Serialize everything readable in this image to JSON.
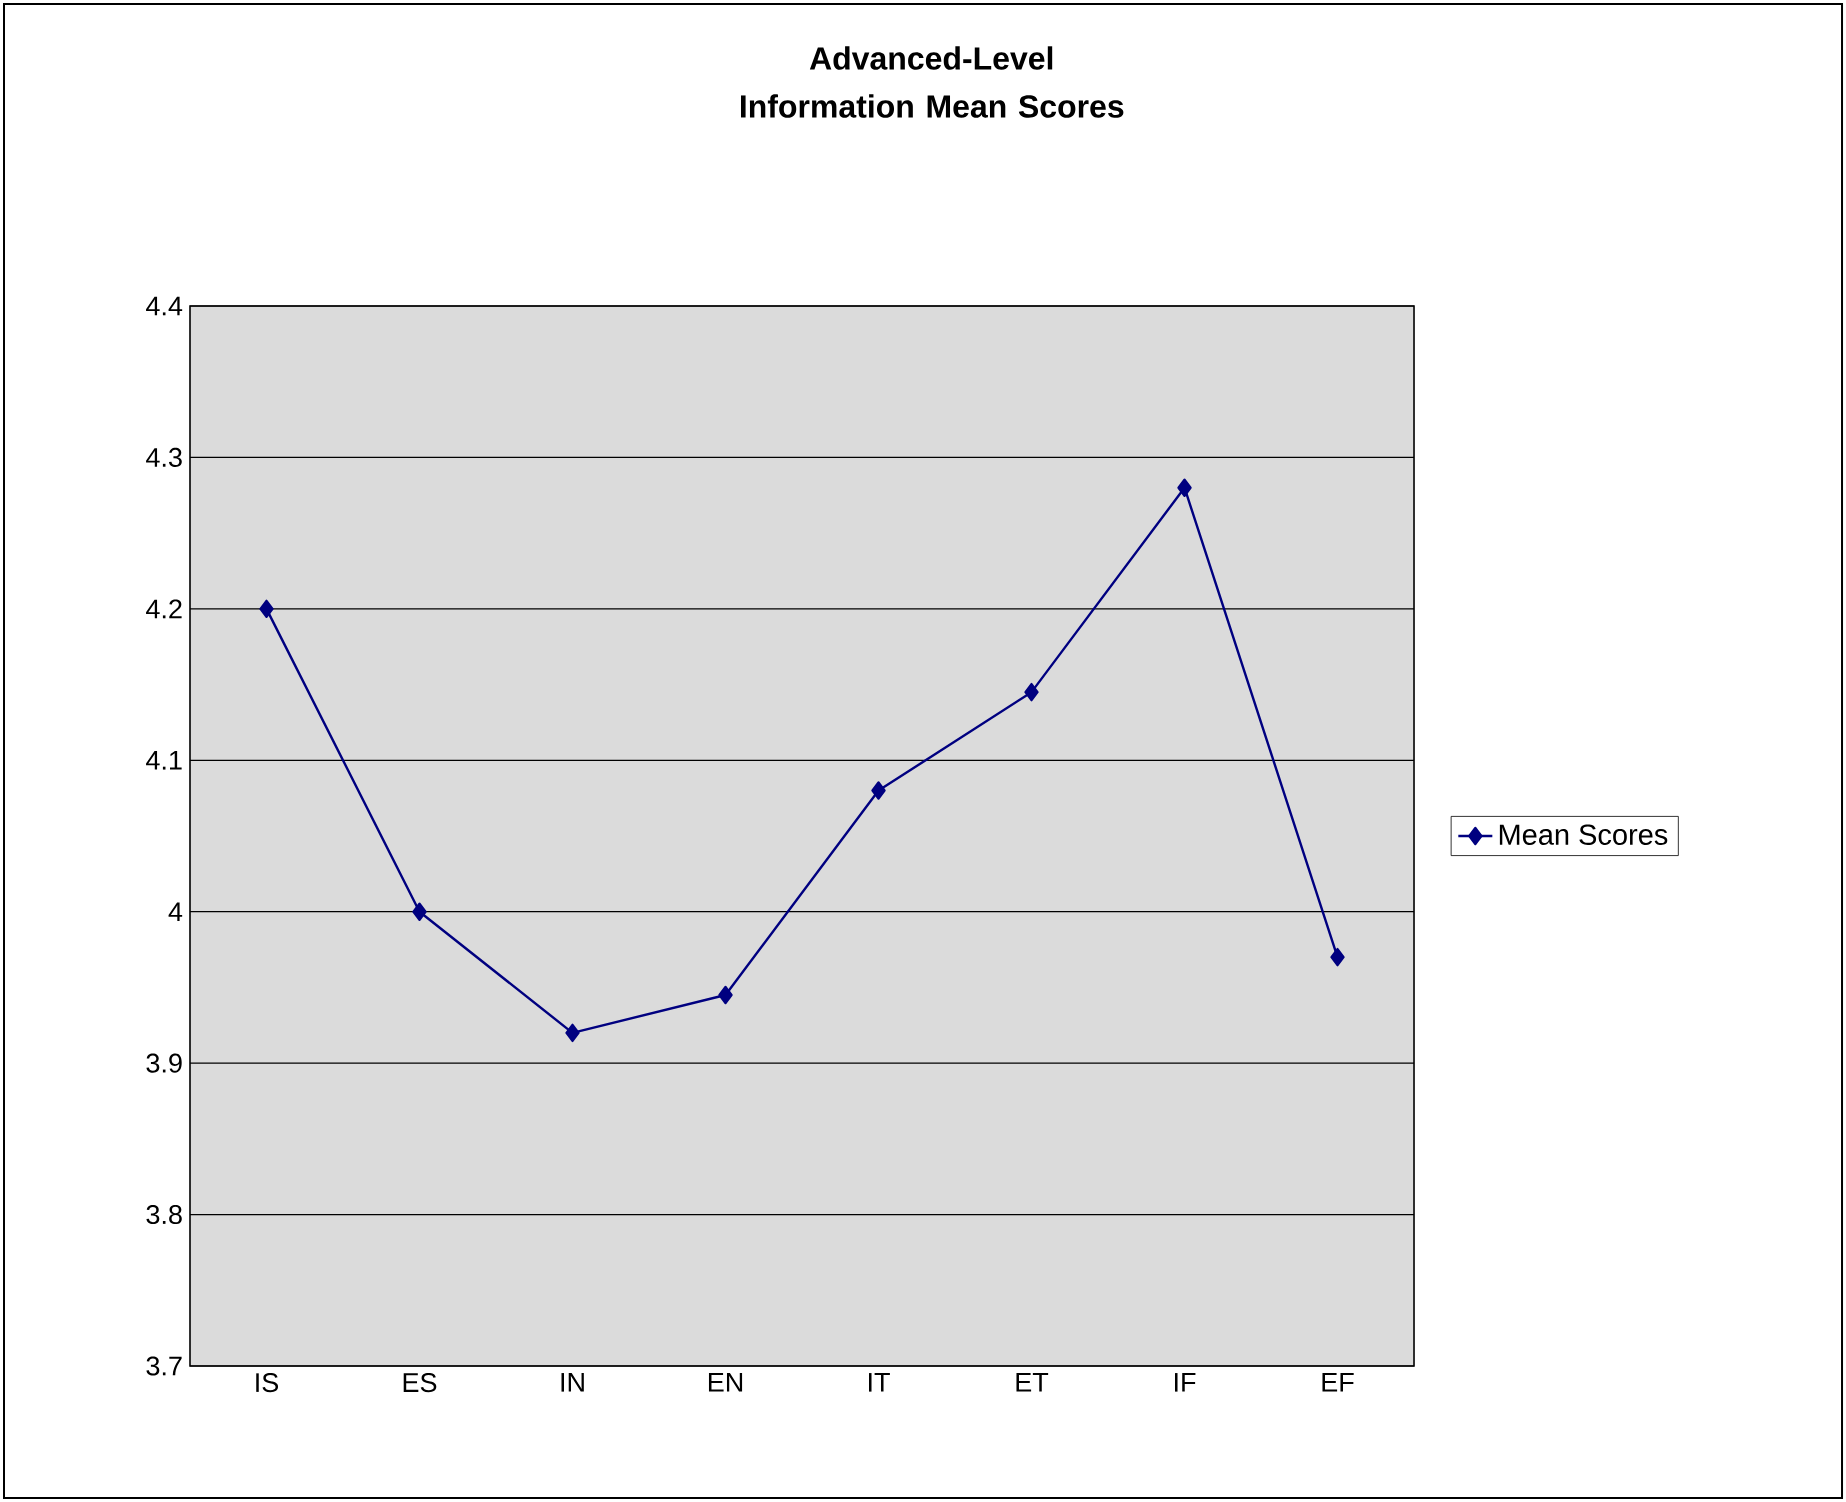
{
  "chart_data": {
    "type": "line",
    "title": "Advanced-Level Information Mean Scores",
    "categories": [
      "IS",
      "ES",
      "IN",
      "EN",
      "IT",
      "ET",
      "IF",
      "EF"
    ],
    "series": [
      {
        "name": "Mean Scores",
        "color": "#000080",
        "values": [
          4.2,
          4.0,
          3.92,
          3.945,
          4.08,
          4.145,
          4.28,
          3.97
        ]
      }
    ],
    "ylim": [
      3.7,
      4.4
    ],
    "yticks": [
      3.7,
      3.8,
      3.9,
      4,
      4.1,
      4.2,
      4.3,
      4.4
    ],
    "grid": "y",
    "legend": "right",
    "marker": "diamond",
    "line_style": "solid"
  }
}
